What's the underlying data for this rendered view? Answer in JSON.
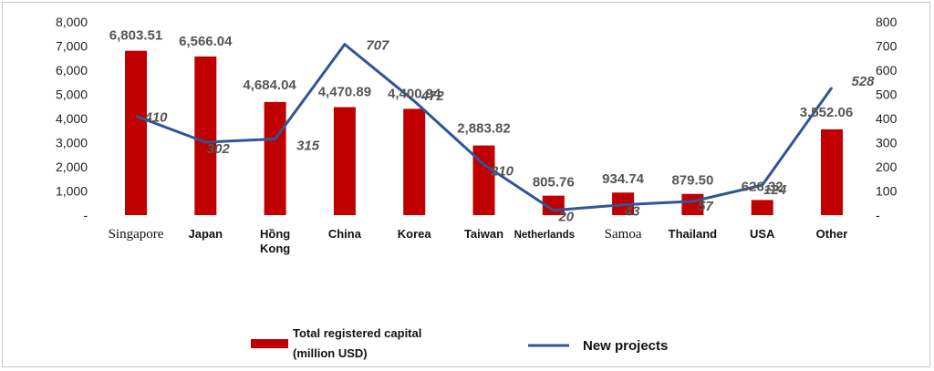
{
  "chart_data": {
    "type": "bar",
    "categories": [
      "Singapore",
      "Japan",
      "Hồng Kong",
      "China",
      "Korea",
      "Taiwan",
      "Netherlands",
      "Samoa",
      "Thailand",
      "USA",
      "Other"
    ],
    "series": [
      {
        "name": "Total registered capital (million USD)",
        "type": "bar",
        "axis": "left",
        "color": "#c00000",
        "values": [
          6803.51,
          6566.04,
          4684.04,
          4470.89,
          4400.94,
          2883.82,
          805.76,
          934.74,
          879.5,
          626.32,
          3552.06
        ],
        "labels": [
          "6,803.51",
          "6,566.04",
          "4,684.04",
          "4,470.89",
          "4,400.94",
          "2,883.82",
          "805.76",
          "934.74",
          "879.50",
          "626.32",
          "3,552.06"
        ]
      },
      {
        "name": "New projects",
        "type": "line",
        "axis": "right",
        "color": "#2f5597",
        "values": [
          410,
          302,
          315,
          707,
          472,
          210,
          20,
          43,
          57,
          124,
          528
        ],
        "labels": [
          "410",
          "302",
          "315",
          "707",
          "472",
          "210",
          "20",
          "43",
          "57",
          "124",
          "528"
        ]
      }
    ],
    "left_axis": {
      "ylim": [
        0,
        8000
      ],
      "ticks": [
        "-",
        "1,000",
        "2,000",
        "3,000",
        "4,000",
        "5,000",
        "6,000",
        "7,000",
        "8,000"
      ]
    },
    "right_axis": {
      "ylim": [
        0,
        800
      ],
      "ticks": [
        "-",
        "100",
        "200",
        "300",
        "400",
        "500",
        "600",
        "700",
        "800"
      ]
    },
    "grid": false,
    "legend": {
      "placement": "bottom",
      "bar_label_line1": "Total registered capital",
      "bar_label_line2": "(million USD)",
      "line_label": "New projects"
    }
  }
}
